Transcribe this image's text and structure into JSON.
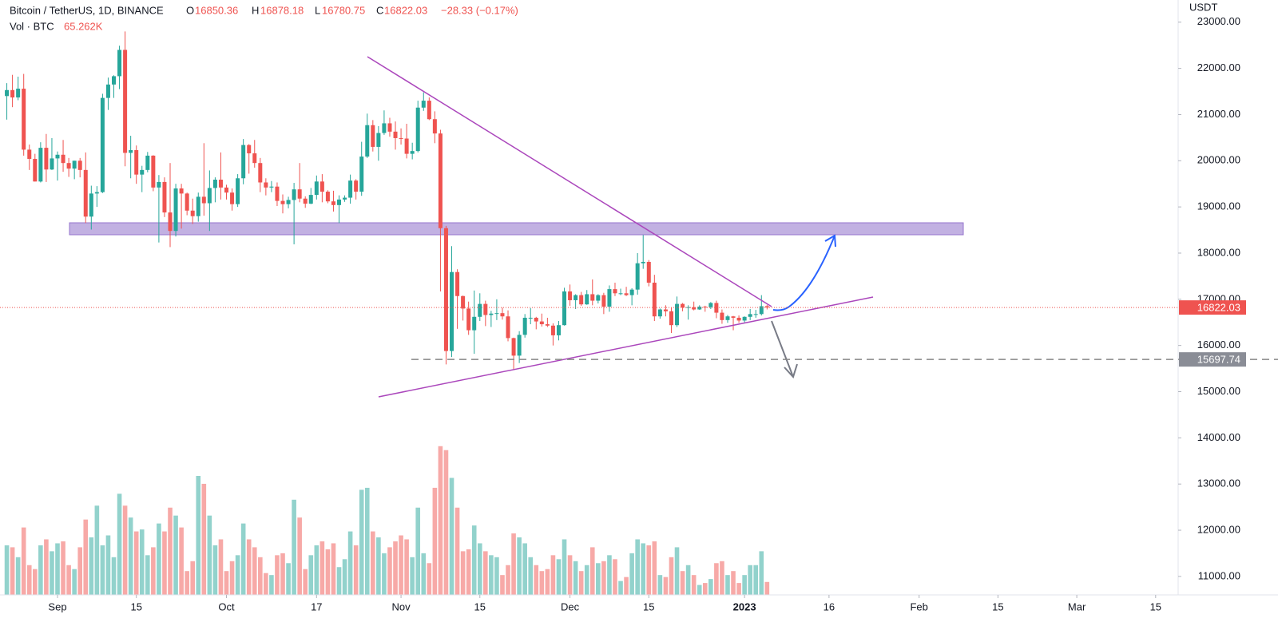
{
  "chart_data": {
    "type": "candlestick",
    "title": "Bitcoin / TetherUS, 1D, BINANCE",
    "ohlc_labels": [
      "O",
      "H",
      "L",
      "C"
    ],
    "change_label": "−28.33 (−0.17%)",
    "volume_title": "Vol · BTC",
    "volume_label": "65.262K",
    "y_unit": "USDT",
    "up_color": "#26a69a",
    "down_color": "#ef5350",
    "support_level": 15697.74,
    "x": [
      "2022-08-23",
      "2022-08-24",
      "2022-08-25",
      "2022-08-26",
      "2022-08-27",
      "2022-08-28",
      "2022-08-29",
      "2022-08-30",
      "2022-08-31",
      "2022-09-01",
      "2022-09-02",
      "2022-09-03",
      "2022-09-04",
      "2022-09-05",
      "2022-09-06",
      "2022-09-07",
      "2022-09-08",
      "2022-09-09",
      "2022-09-10",
      "2022-09-11",
      "2022-09-12",
      "2022-09-13",
      "2022-09-14",
      "2022-09-15",
      "2022-09-16",
      "2022-09-17",
      "2022-09-18",
      "2022-09-19",
      "2022-09-20",
      "2022-09-21",
      "2022-09-22",
      "2022-09-23",
      "2022-09-24",
      "2022-09-25",
      "2022-09-26",
      "2022-09-27",
      "2022-09-28",
      "2022-09-29",
      "2022-09-30",
      "2022-10-01",
      "2022-10-02",
      "2022-10-03",
      "2022-10-04",
      "2022-10-05",
      "2022-10-06",
      "2022-10-07",
      "2022-10-08",
      "2022-10-09",
      "2022-10-10",
      "2022-10-11",
      "2022-10-12",
      "2022-10-13",
      "2022-10-14",
      "2022-10-15",
      "2022-10-16",
      "2022-10-17",
      "2022-10-18",
      "2022-10-19",
      "2022-10-20",
      "2022-10-21",
      "2022-10-22",
      "2022-10-23",
      "2022-10-24",
      "2022-10-25",
      "2022-10-26",
      "2022-10-27",
      "2022-10-28",
      "2022-10-29",
      "2022-10-30",
      "2022-10-31",
      "2022-11-01",
      "2022-11-02",
      "2022-11-03",
      "2022-11-04",
      "2022-11-05",
      "2022-11-06",
      "2022-11-07",
      "2022-11-08",
      "2022-11-09",
      "2022-11-10",
      "2022-11-11",
      "2022-11-12",
      "2022-11-13",
      "2022-11-14",
      "2022-11-15",
      "2022-11-16",
      "2022-11-17",
      "2022-11-18",
      "2022-11-19",
      "2022-11-20",
      "2022-11-21",
      "2022-11-22",
      "2022-11-23",
      "2022-11-24",
      "2022-11-25",
      "2022-11-26",
      "2022-11-27",
      "2022-11-28",
      "2022-11-29",
      "2022-11-30",
      "2022-12-01",
      "2022-12-02",
      "2022-12-03",
      "2022-12-04",
      "2022-12-05",
      "2022-12-06",
      "2022-12-07",
      "2022-12-08",
      "2022-12-09",
      "2022-12-10",
      "2022-12-11",
      "2022-12-12",
      "2022-12-13",
      "2022-12-14",
      "2022-12-15",
      "2022-12-16",
      "2022-12-17",
      "2022-12-18",
      "2022-12-19",
      "2022-12-20",
      "2022-12-21",
      "2022-12-22",
      "2022-12-23",
      "2022-12-24",
      "2022-12-25",
      "2022-12-26",
      "2022-12-27",
      "2022-12-28",
      "2022-12-29",
      "2022-12-30",
      "2022-12-31",
      "2023-01-01",
      "2023-01-02",
      "2023-01-03",
      "2023-01-04",
      "2023-01-05"
    ],
    "open": [
      21400,
      21530,
      21370,
      21560,
      20240,
      20040,
      19550,
      20280,
      19810,
      20050,
      20130,
      19950,
      19830,
      20000,
      19800,
      18790,
      19290,
      19320,
      21360,
      21650,
      21830,
      22400,
      20170,
      20230,
      19700,
      19800,
      20110,
      19420,
      19540,
      18880,
      18480,
      19400,
      19290,
      18920,
      18800,
      19220,
      19080,
      19410,
      19590,
      19420,
      19310,
      19060,
      19620,
      20340,
      20160,
      19950,
      19530,
      19420,
      19440,
      19130,
      19060,
      19150,
      19380,
      19180,
      19070,
      19260,
      19550,
      19330,
      19120,
      19040,
      19160,
      19200,
      19570,
      19330,
      20090,
      20770,
      20300,
      20600,
      20810,
      20630,
      20490,
      20480,
      20150,
      20210,
      21150,
      21300,
      20900,
      20590,
      18540,
      15880,
      17590,
      17070,
      16800,
      16330,
      16620,
      16900,
      16660,
      16690,
      16700,
      16630,
      16160,
      15780,
      16230,
      16600,
      16600,
      16520,
      16460,
      16430,
      16220,
      16440,
      17170,
      16980,
      17090,
      16890,
      17110,
      16970,
      17090,
      16840,
      17220,
      17130,
      17130,
      17090,
      17210,
      17780,
      17810,
      17360,
      16630,
      16780,
      16740,
      16440,
      16900,
      16820,
      16830,
      16780,
      16840,
      16830,
      16920,
      16710,
      16550,
      16630,
      16600,
      16540,
      16620,
      16680,
      16680,
      16850.36
    ],
    "high": [
      21680,
      21860,
      21820,
      21880,
      20350,
      20150,
      20400,
      20580,
      20490,
      20200,
      20450,
      20060,
      20000,
      20060,
      20180,
      19460,
      19450,
      21450,
      21800,
      21850,
      22490,
      22800,
      20540,
      20330,
      19890,
      20190,
      20120,
      19690,
      19640,
      19950,
      19500,
      19500,
      19310,
      19180,
      19310,
      20380,
      19790,
      19640,
      20180,
      19480,
      19400,
      19710,
      20470,
      20360,
      20450,
      20060,
      19620,
      19560,
      19530,
      19270,
      19220,
      19520,
      19950,
      19230,
      19410,
      19680,
      19710,
      19360,
      19350,
      19250,
      19250,
      19700,
      19600,
      20410,
      21020,
      20880,
      20750,
      21090,
      20930,
      20850,
      20700,
      20800,
      20390,
      21300,
      21480,
      21370,
      21070,
      20670,
      18590,
      18150,
      17650,
      17080,
      16950,
      17190,
      17130,
      16970,
      16750,
      17000,
      16820,
      16760,
      16170,
      16310,
      16680,
      16810,
      16620,
      16690,
      16600,
      16480,
      16530,
      17250,
      17320,
      17110,
      17160,
      17200,
      17430,
      17110,
      17140,
      17300,
      17360,
      17230,
      17270,
      17240,
      18000,
      18390,
      17850,
      17530,
      16800,
      16870,
      16820,
      17060,
      16920,
      16870,
      16950,
      16870,
      16860,
      16940,
      16970,
      16780,
      16660,
      16640,
      16650,
      16630,
      16790,
      16770,
      17090,
      16878.18
    ],
    "low": [
      20890,
      21160,
      21310,
      20110,
      19800,
      19550,
      19530,
      19540,
      19800,
      19570,
      19760,
      19650,
      19600,
      19640,
      18650,
      18510,
      19000,
      19300,
      21100,
      21360,
      21550,
      19880,
      19620,
      19500,
      19320,
      19750,
      19340,
      18230,
      18780,
      18130,
      18360,
      18530,
      18820,
      18630,
      18680,
      18810,
      18480,
      19100,
      19160,
      19160,
      18920,
      19000,
      19490,
      19720,
      19850,
      19320,
      19250,
      19320,
      19020,
      18860,
      18970,
      18190,
      19100,
      18980,
      19060,
      19160,
      19100,
      19080,
      18900,
      18650,
      19110,
      19070,
      19160,
      19240,
      20060,
      20200,
      20000,
      20560,
      20520,
      20240,
      20350,
      20050,
      20030,
      20180,
      21080,
      20880,
      20380,
      17170,
      15590,
      15750,
      16360,
      16540,
      16230,
      15820,
      16530,
      16420,
      16400,
      16550,
      16560,
      16090,
      15480,
      15620,
      16170,
      16460,
      16350,
      16410,
      16400,
      16000,
      16110,
      16430,
      16860,
      16790,
      16860,
      16880,
      16870,
      16910,
      16680,
      16730,
      17070,
      17090,
      17070,
      16870,
      17100,
      17660,
      17280,
      16530,
      16580,
      16630,
      16270,
      16400,
      16740,
      16560,
      16760,
      16770,
      16730,
      16790,
      16590,
      16470,
      16490,
      16330,
      16490,
      16500,
      16550,
      16600,
      16650,
      16780.75
    ],
    "close": [
      21530,
      21370,
      21560,
      20240,
      20040,
      19550,
      20280,
      19810,
      20050,
      20130,
      19950,
      19830,
      20000,
      19800,
      18790,
      19290,
      19320,
      21360,
      21650,
      21830,
      22400,
      20170,
      20230,
      19700,
      19800,
      20110,
      19420,
      19540,
      18880,
      18480,
      19400,
      19290,
      18920,
      18800,
      19220,
      19080,
      19410,
      19590,
      19420,
      19310,
      19060,
      19620,
      20340,
      20160,
      19950,
      19530,
      19420,
      19440,
      19130,
      19060,
      19150,
      19380,
      19180,
      19070,
      19260,
      19550,
      19330,
      19120,
      19040,
      19160,
      19200,
      19570,
      19330,
      20090,
      20770,
      20300,
      20600,
      20810,
      20630,
      20490,
      20480,
      20150,
      20210,
      21150,
      21300,
      20900,
      20590,
      18540,
      15880,
      17590,
      17070,
      16800,
      16330,
      16620,
      16900,
      16660,
      16690,
      16700,
      16630,
      16160,
      15780,
      16230,
      16600,
      16600,
      16520,
      16460,
      16430,
      16220,
      16440,
      17170,
      16980,
      17090,
      16890,
      17110,
      16970,
      17090,
      16840,
      17220,
      17130,
      17130,
      17090,
      17210,
      17780,
      17810,
      17360,
      16630,
      16780,
      16740,
      16440,
      16900,
      16820,
      16830,
      16780,
      16840,
      16830,
      16920,
      16710,
      16550,
      16630,
      16600,
      16540,
      16620,
      16680,
      16680,
      16850,
      16822.03
    ],
    "volume": [
      250000,
      240000,
      190000,
      340000,
      150000,
      130000,
      250000,
      280000,
      220000,
      260000,
      270000,
      150000,
      130000,
      240000,
      380000,
      290000,
      450000,
      250000,
      300000,
      190000,
      510000,
      450000,
      390000,
      320000,
      330000,
      200000,
      240000,
      360000,
      320000,
      440000,
      400000,
      340000,
      120000,
      170000,
      600000,
      560000,
      400000,
      250000,
      280000,
      120000,
      170000,
      200000,
      360000,
      280000,
      240000,
      190000,
      110000,
      100000,
      200000,
      210000,
      160000,
      480000,
      390000,
      130000,
      200000,
      250000,
      270000,
      230000,
      260000,
      140000,
      180000,
      320000,
      250000,
      530000,
      540000,
      320000,
      290000,
      210000,
      240000,
      270000,
      300000,
      280000,
      190000,
      440000,
      210000,
      160000,
      540000,
      750000,
      730000,
      590000,
      440000,
      220000,
      230000,
      350000,
      260000,
      220000,
      200000,
      190000,
      100000,
      150000,
      310000,
      290000,
      260000,
      190000,
      150000,
      120000,
      130000,
      200000,
      180000,
      280000,
      200000,
      170000,
      120000,
      150000,
      240000,
      160000,
      170000,
      200000,
      180000,
      70000,
      90000,
      210000,
      280000,
      260000,
      250000,
      270000,
      100000,
      90000,
      190000,
      240000,
      120000,
      150000,
      100000,
      50000,
      60000,
      80000,
      160000,
      170000,
      100000,
      120000,
      60000,
      100000,
      150000,
      150000,
      220000,
      65262
    ],
    "xlim": [
      "2022-08-22",
      "2023-03-19"
    ],
    "xticks": [
      {
        "value": "2022-09-01",
        "label": "Sep"
      },
      {
        "value": "2022-09-15",
        "label": "15"
      },
      {
        "value": "2022-10-01",
        "label": "Oct"
      },
      {
        "value": "2022-10-17",
        "label": "17"
      },
      {
        "value": "2022-11-01",
        "label": "Nov"
      },
      {
        "value": "2022-11-15",
        "label": "15"
      },
      {
        "value": "2022-12-01",
        "label": "Dec"
      },
      {
        "value": "2022-12-15",
        "label": "15"
      },
      {
        "value": "2023-01-01",
        "label": "2023"
      },
      {
        "value": "2023-01-16",
        "label": "16"
      },
      {
        "value": "2023-02-01",
        "label": "Feb"
      },
      {
        "value": "2023-02-15",
        "label": "15"
      },
      {
        "value": "2023-03-01",
        "label": "Mar"
      },
      {
        "value": "2023-03-15",
        "label": "15"
      }
    ],
    "ylim": [
      10600,
      23480
    ],
    "yticks": [
      {
        "value": 11000,
        "label": "11000.00"
      },
      {
        "value": 12000,
        "label": "12000.00"
      },
      {
        "value": 13000,
        "label": "13000.00"
      },
      {
        "value": 14000,
        "label": "14000.00"
      },
      {
        "value": 15000,
        "label": "15000.00"
      },
      {
        "value": 16000,
        "label": "16000.00"
      },
      {
        "value": 17000,
        "label": "17000.00"
      },
      {
        "value": 18000,
        "label": "18000.00"
      },
      {
        "value": 19000,
        "label": "19000.00"
      },
      {
        "value": 20000,
        "label": "20000.00"
      },
      {
        "value": 21000,
        "label": "21000.00"
      },
      {
        "value": 22000,
        "label": "22000.00"
      },
      {
        "value": 23000,
        "label": "23000.00"
      }
    ],
    "y2lim": [
      0,
      3000000
    ]
  }
}
